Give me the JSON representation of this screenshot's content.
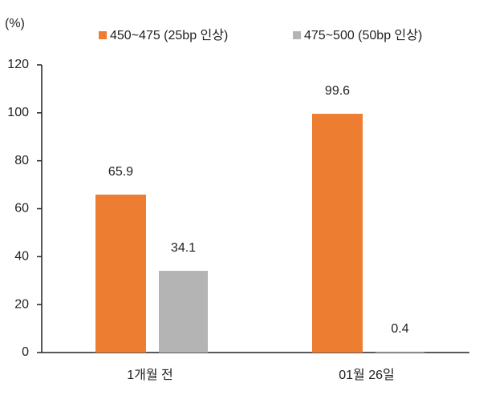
{
  "chart_data": {
    "type": "bar",
    "y_label": "(%)",
    "categories": [
      "1개월 전",
      "01월 26일"
    ],
    "series": [
      {
        "name": "450~475 (25bp 인상)",
        "color": "#ed7d31",
        "values": [
          65.9,
          99.6
        ]
      },
      {
        "name": "475~500 (50bp 인상)",
        "color": "#b4b4b4",
        "values": [
          34.1,
          0.4
        ]
      }
    ],
    "ylim": [
      0,
      120
    ],
    "yticks": [
      0,
      20,
      40,
      60,
      80,
      100,
      120
    ],
    "grid": false,
    "legend": "top"
  }
}
